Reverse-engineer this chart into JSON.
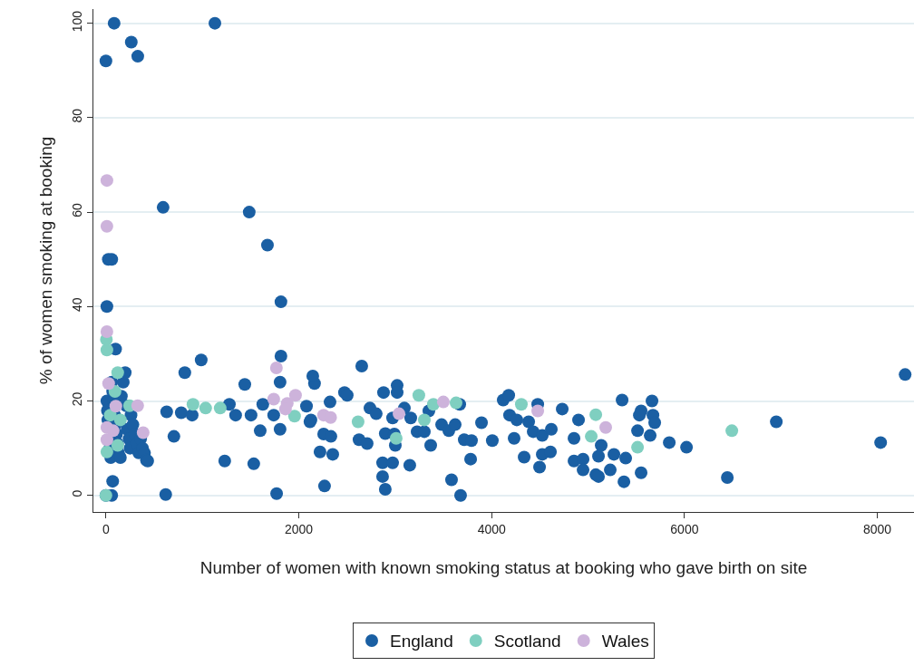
{
  "chart_data": {
    "type": "scatter",
    "xlabel": "Number of women with known smoking status at booking who gave birth on site",
    "ylabel": "% of women smoking at booking",
    "xlim": [
      -130,
      8380
    ],
    "ylim": [
      -3.5,
      103
    ],
    "xticks": [
      0,
      2000,
      4000,
      6000,
      8000
    ],
    "yticks": [
      0,
      20,
      40,
      60,
      80,
      100
    ],
    "grid": "y",
    "legend": "bottom",
    "marker": "circle",
    "series": [
      {
        "name": "England",
        "color": "#1a5fa3",
        "x": [
          10,
          15,
          20,
          40,
          50,
          60,
          70,
          80,
          90,
          100,
          110,
          120,
          130,
          150,
          160,
          180,
          200,
          210,
          220,
          240,
          250,
          260,
          280,
          300,
          320,
          340,
          360,
          380,
          400,
          420,
          100,
          70,
          60,
          0,
          10,
          0,
          85,
          263,
          330,
          25,
          60,
          1130,
          593,
          1486,
          1675,
          1815,
          988,
          818,
          630,
          781,
          894,
          1232,
          1533,
          1815,
          1806,
          1440,
          705,
          433,
          620,
          1770,
          1627,
          1600,
          1806,
          1740,
          1280,
          1345,
          1505,
          2080,
          2163,
          2145,
          2116,
          2220,
          2267,
          2653,
          2126,
          2258,
          2333,
          2352,
          2474,
          2502,
          2324,
          2625,
          2709,
          2738,
          2803,
          2879,
          3020,
          3020,
          2897,
          2991,
          3095,
          2973,
          3161,
          3001,
          2869,
          2973,
          2869,
          2897,
          3151,
          3227,
          3302,
          3368,
          3349,
          3481,
          3556,
          3622,
          3669,
          3716,
          3791,
          3584,
          3678,
          3782,
          3895,
          4007,
          4120,
          4177,
          4186,
          4261,
          4384,
          4233,
          4478,
          4431,
          4525,
          4619,
          4337,
          4525,
          4610,
          4497,
          4732,
          4901,
          4854,
          4854,
          4948,
          4948,
          5080,
          5136,
          5108,
          5230,
          5268,
          5353,
          5663,
          5550,
          5532,
          5673,
          5691,
          5513,
          5644,
          5390,
          5108,
          5372,
          5550,
          5842,
          6021,
          6444,
          6952,
          8034,
          8288
        ],
        "values": [
          20,
          18,
          16,
          10,
          8,
          24,
          22,
          20,
          17,
          15,
          13,
          11,
          9,
          8,
          21,
          24,
          26,
          19,
          14,
          12,
          10,
          17,
          15,
          13,
          11,
          9,
          12,
          10,
          9,
          7.5,
          31,
          3,
          0,
          0,
          40,
          92,
          100,
          96,
          93,
          50,
          50,
          100,
          61,
          60,
          53,
          41,
          28.7,
          26,
          17.7,
          17.5,
          17,
          7.3,
          6.7,
          29.5,
          24,
          23.5,
          12.5,
          7.3,
          0.2,
          0.4,
          19.3,
          13.7,
          14,
          17,
          19.3,
          17,
          17,
          18.9,
          23.7,
          25.3,
          15.6,
          9.2,
          2,
          27.4,
          16,
          13,
          12.5,
          8.7,
          21.8,
          21.2,
          19.8,
          11.8,
          11,
          18.5,
          17.3,
          21.8,
          23.3,
          21.8,
          13.1,
          13,
          18.5,
          16.4,
          16.4,
          10.6,
          6.9,
          6.9,
          4,
          1.3,
          6.4,
          13.5,
          13.5,
          10.6,
          17.9,
          15,
          13.7,
          15,
          19.3,
          11.8,
          11.6,
          3.3,
          0,
          7.7,
          15.4,
          11.6,
          20.2,
          21.2,
          17,
          16,
          15.6,
          12.1,
          19.3,
          13.5,
          12.7,
          14,
          8.1,
          8.7,
          9.2,
          6,
          18.3,
          16,
          12.1,
          7.3,
          7.7,
          5.4,
          4.4,
          10.6,
          8.3,
          5.4,
          8.7,
          20.2,
          20,
          17.9,
          17,
          17,
          15.4,
          13.7,
          12.7,
          7.9,
          4,
          2.9,
          4.8,
          11.2,
          10.2,
          3.8,
          15.6,
          11.2,
          25.6
        ]
      },
      {
        "name": "Scotland",
        "color": "#7fcfc0",
        "x": [
          6491,
          5513,
          5080,
          5033,
          4308,
          3631,
          3396,
          3302,
          3245,
          3010,
          2615,
          903,
          1034,
          1185,
          1956,
          10,
          122,
          245,
          10,
          0,
          45,
          150,
          122,
          94,
          5
        ],
        "values": [
          13.7,
          10.2,
          17.1,
          12.5,
          19.3,
          19.6,
          19.3,
          16,
          21.2,
          12.1,
          15.6,
          19.3,
          18.5,
          18.5,
          16.8,
          30.8,
          26,
          19,
          9.2,
          0,
          17,
          16,
          10.6,
          22,
          33
        ]
      },
      {
        "name": "Wales",
        "color": "#cdb3db",
        "x": [
          10,
          10,
          10,
          28,
          103,
          329,
          386,
          10,
          10,
          75,
          1768,
          1740,
          1880,
          1966,
          1862,
          2257,
          2330,
          3039,
          3499,
          4478,
          5183
        ],
        "values": [
          66.7,
          57,
          34.7,
          23.7,
          18.9,
          19,
          13.3,
          14.4,
          11.8,
          13.7,
          27,
          20.4,
          19.5,
          21.2,
          18.3,
          17,
          16.5,
          17.3,
          19.8,
          17.9,
          14.4
        ]
      }
    ]
  }
}
